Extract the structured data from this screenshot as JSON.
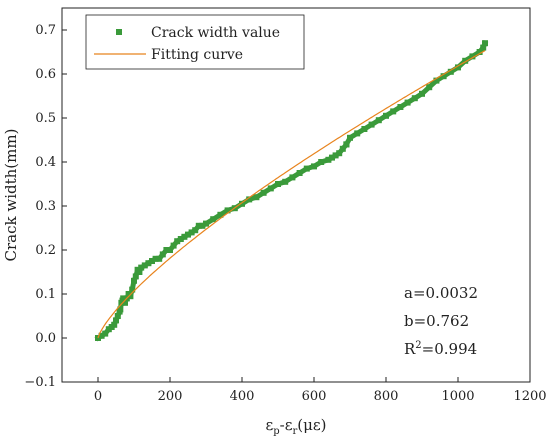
{
  "chart_data": {
    "type": "scatter",
    "title": "",
    "xlabel": "εp-εr(με)",
    "xlabel_parts": {
      "main": "ε",
      "sub1": "p",
      "mid": "-ε",
      "sub2": "r",
      "tail": "(με)"
    },
    "ylabel": "Crack width(mm)",
    "xlim": [
      -100,
      1200
    ],
    "ylim": [
      -0.1,
      0.75
    ],
    "xticks": [
      0,
      200,
      400,
      600,
      800,
      1000,
      1200
    ],
    "yticks": [
      -0.1,
      0.0,
      0.1,
      0.2,
      0.3,
      0.4,
      0.5,
      0.6,
      0.7
    ],
    "xtick_labels": [
      "0",
      "200",
      "400",
      "600",
      "800",
      "1000",
      "1200"
    ],
    "ytick_labels": [
      "−0.1",
      "0.0",
      "0.1",
      "0.2",
      "0.3",
      "0.4",
      "0.5",
      "0.6",
      "0.7"
    ],
    "grid": false,
    "legend_position": "top-left",
    "series": [
      {
        "name": "Crack width value",
        "kind": "scatter",
        "color": "#3a9a3a",
        "x": [
          0,
          10,
          20,
          30,
          38,
          45,
          50,
          55,
          60,
          62,
          65,
          68,
          70,
          75,
          80,
          85,
          90,
          95,
          100,
          105,
          110,
          115,
          120,
          130,
          140,
          150,
          160,
          170,
          180,
          190,
          200,
          210,
          220,
          230,
          240,
          250,
          260,
          270,
          280,
          290,
          300,
          320,
          340,
          360,
          380,
          400,
          420,
          440,
          460,
          480,
          500,
          520,
          540,
          560,
          580,
          600,
          620,
          640,
          650,
          660,
          670,
          680,
          690,
          690,
          700,
          720,
          740,
          760,
          780,
          800,
          820,
          840,
          860,
          880,
          900,
          920,
          940,
          960,
          980,
          1000,
          1020,
          1040,
          1060,
          1070,
          1075
        ],
        "y": [
          0.0,
          0.005,
          0.01,
          0.02,
          0.025,
          0.03,
          0.04,
          0.05,
          0.06,
          0.065,
          0.08,
          0.085,
          0.09,
          0.08,
          0.09,
          0.1,
          0.095,
          0.11,
          0.13,
          0.14,
          0.155,
          0.15,
          0.16,
          0.165,
          0.17,
          0.175,
          0.18,
          0.18,
          0.19,
          0.2,
          0.2,
          0.21,
          0.22,
          0.225,
          0.23,
          0.235,
          0.24,
          0.245,
          0.255,
          0.255,
          0.26,
          0.27,
          0.28,
          0.29,
          0.295,
          0.305,
          0.315,
          0.32,
          0.33,
          0.34,
          0.35,
          0.355,
          0.365,
          0.375,
          0.385,
          0.39,
          0.4,
          0.405,
          0.41,
          0.415,
          0.42,
          0.43,
          0.44,
          0.44,
          0.455,
          0.465,
          0.475,
          0.485,
          0.495,
          0.505,
          0.515,
          0.525,
          0.535,
          0.545,
          0.555,
          0.57,
          0.585,
          0.595,
          0.605,
          0.615,
          0.63,
          0.64,
          0.65,
          0.66,
          0.67
        ]
      },
      {
        "name": "Fitting curve",
        "kind": "line",
        "color": "#e8841e",
        "formula": "y = a * x^b",
        "a": 0.0032,
        "b": 0.762,
        "x_range": [
          0,
          1075
        ]
      }
    ],
    "annotations": [
      {
        "key": "a",
        "text": "a=0.0032"
      },
      {
        "key": "b",
        "text": "b=0.762"
      },
      {
        "key": "r2",
        "main": "R",
        "sup": "2",
        "rest": "=0.994"
      }
    ]
  }
}
